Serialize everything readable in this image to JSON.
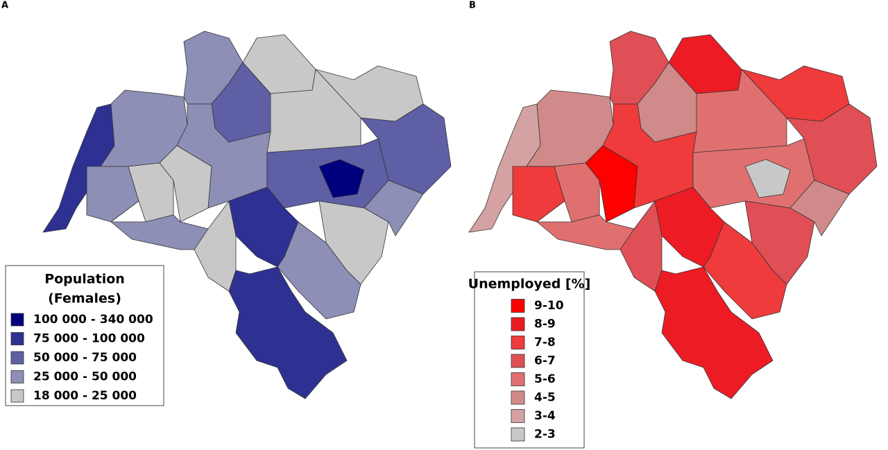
{
  "panels": [
    {
      "label": "A",
      "legend": {
        "title_lines": [
          "Population",
          "(Females)"
        ],
        "items": [
          {
            "label": "100 000 - 340 000",
            "color": "#00007f"
          },
          {
            "label": "75 000 - 100 000",
            "color": "#2e3192"
          },
          {
            "label": "50 000 -   75 000",
            "color": "#5f5fa6"
          },
          {
            "label": "25 000 -   50 000",
            "color": "#8e8fb7"
          },
          {
            "label": "18 000 -   25 000",
            "color": "#c8c8c8"
          }
        ]
      }
    },
    {
      "label": "B",
      "legend": {
        "title_lines": [
          "Unemployed [%]"
        ],
        "items": [
          {
            "label": "9-10",
            "color": "#ff0000"
          },
          {
            "label": "8-9",
            "color": "#ed1c24"
          },
          {
            "label": "7-8",
            "color": "#ef3b3b"
          },
          {
            "label": "6-7",
            "color": "#df4f55"
          },
          {
            "label": "5-6",
            "color": "#e07070"
          },
          {
            "label": "4-5",
            "color": "#d08a8a"
          },
          {
            "label": "3-4",
            "color": "#d4a2a2"
          },
          {
            "label": "2-3",
            "color": "#c8c8c8"
          }
        ]
      }
    }
  ]
}
